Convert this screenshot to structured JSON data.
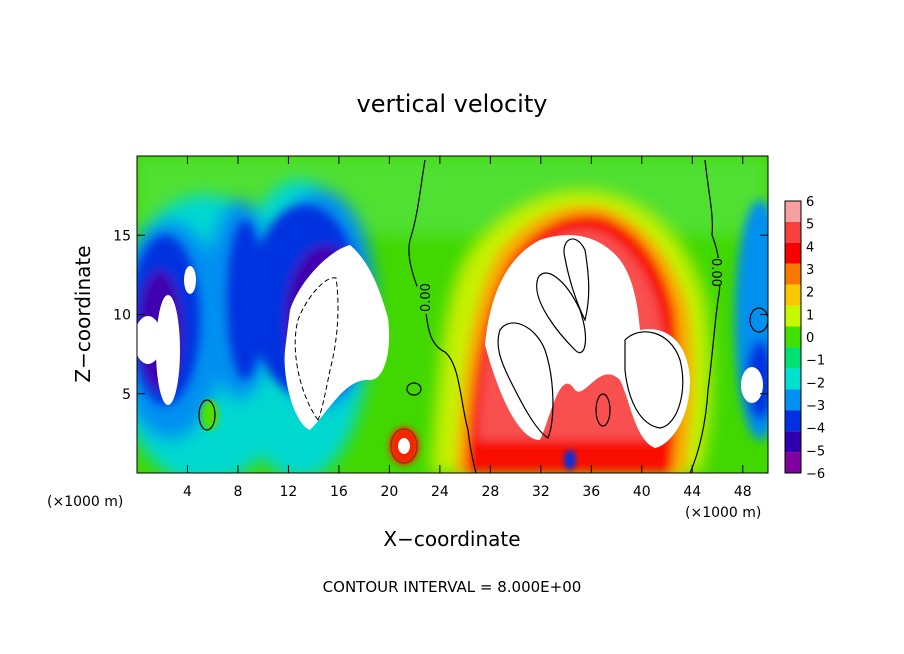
{
  "chart_data": {
    "type": "heatmap",
    "title": "vertical velocity",
    "xlabel": "X−coordinate",
    "ylabel": "Z−coordinate",
    "x_unit_left": "(×1000 m)",
    "x_unit_right": "(×1000 m)",
    "footer": "CONTOUR INTERVAL = 8.000E+00",
    "xlim": [
      0,
      50
    ],
    "ylim": [
      0,
      20
    ],
    "x_ticks": [
      4,
      8,
      12,
      16,
      20,
      24,
      28,
      32,
      36,
      40,
      44,
      48
    ],
    "y_ticks": [
      5,
      10,
      15
    ],
    "colorbar": {
      "levels": [
        6,
        5,
        4,
        3,
        2,
        1,
        0,
        -1,
        -2,
        -3,
        -4,
        -5,
        -6
      ],
      "labels": [
        "6",
        "5",
        "4",
        "3",
        "2",
        "1",
        "0",
        "−1",
        "−2",
        "−3",
        "−4",
        "−5",
        "−6"
      ],
      "colors": [
        "#f8a0a0",
        "#f84040",
        "#f80000",
        "#f87800",
        "#f8c800",
        "#c8f800",
        "#40e000",
        "#00e070",
        "#00e0d0",
        "#0090f0",
        "#0030e0",
        "#3000b0",
        "#8000a0"
      ]
    },
    "contour_labels": [
      {
        "text": "0.00",
        "x": 23.1,
        "y": 11.5
      },
      {
        "text": "0.00",
        "x": 45.2,
        "y": 13.1
      }
    ]
  }
}
